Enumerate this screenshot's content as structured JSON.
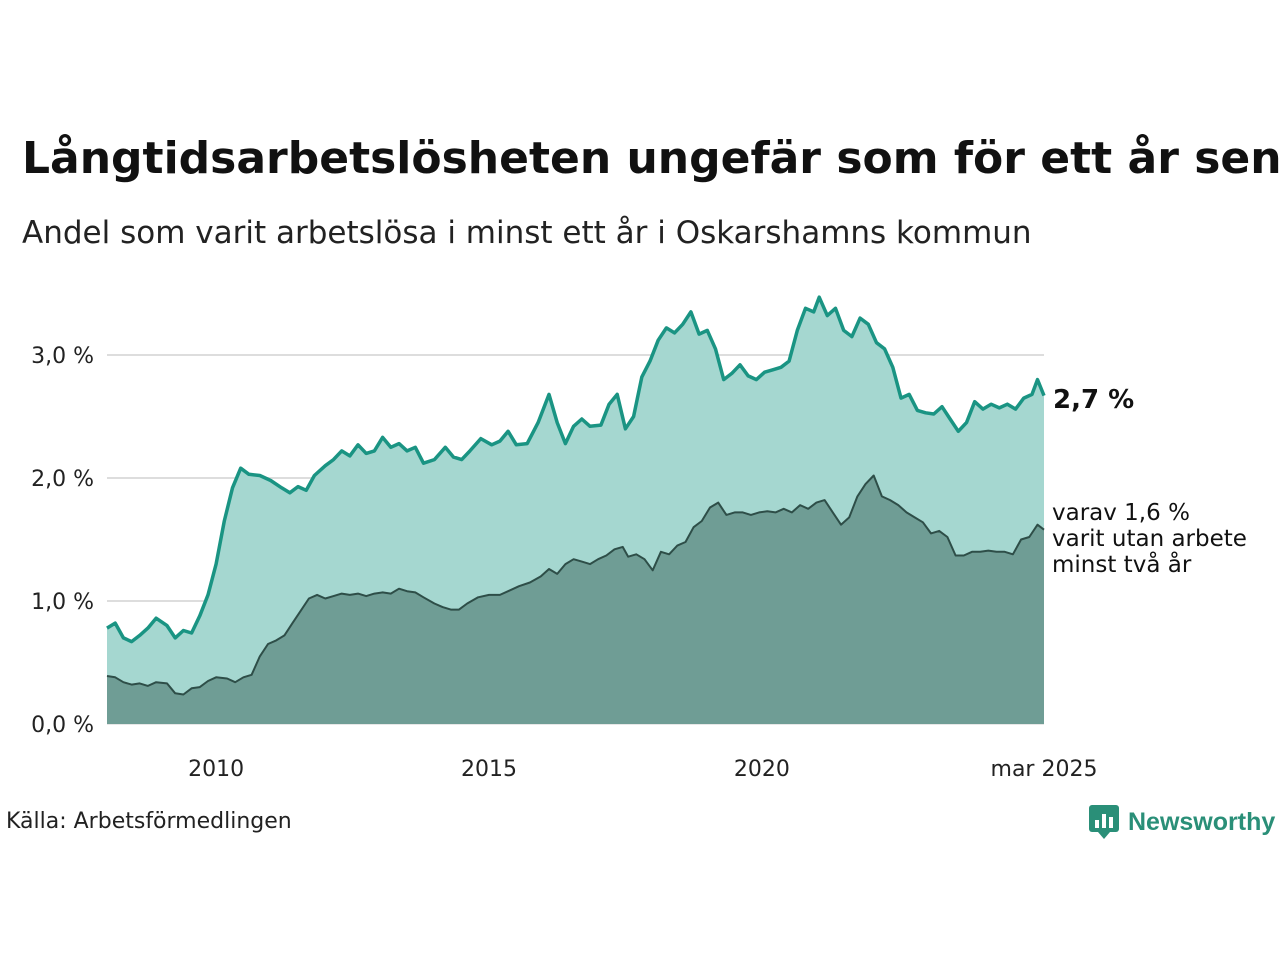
{
  "title": "Långtidsarbetslösheten ungefär som för ett år sen",
  "subtitle": "Andel som varit arbetslösa i minst ett år i Oskarshamns kommun",
  "source": "Källa: Arbetsförmedlingen",
  "brand": "Newsworthy",
  "colors": {
    "area_total": "#a5d7d0",
    "line_total": "#1a9483",
    "area_long": "#6f9d95",
    "line_long": "#2e4e48",
    "grid": "#dddddd",
    "brand": "#2a8f78"
  },
  "annotations": {
    "total_label": "2,7 %",
    "long_label_lines": [
      "varav 1,6 %",
      "varit utan arbete",
      "minst två år"
    ]
  },
  "chart_data": {
    "type": "area",
    "x_start": "2008-01",
    "x_end": "2025-03",
    "xticks": [
      {
        "label": "2010",
        "x": 2010.0
      },
      {
        "label": "2015",
        "x": 2015.0
      },
      {
        "label": "2020",
        "x": 2020.0
      },
      {
        "label": "mar 2025",
        "x": 2025.17
      }
    ],
    "yticks": [
      {
        "label": "0,0 %",
        "y": 0.0
      },
      {
        "label": "1,0 %",
        "y": 1.0
      },
      {
        "label": "2,0 %",
        "y": 2.0
      },
      {
        "label": "3,0 %",
        "y": 3.0
      }
    ],
    "ylim": [
      0,
      3.5
    ],
    "grid": true,
    "series": [
      {
        "name": "minst ett år",
        "points": [
          [
            2008.0,
            0.78
          ],
          [
            2008.15,
            0.82
          ],
          [
            2008.3,
            0.7
          ],
          [
            2008.45,
            0.67
          ],
          [
            2008.6,
            0.72
          ],
          [
            2008.75,
            0.78
          ],
          [
            2008.9,
            0.86
          ],
          [
            2009.1,
            0.8
          ],
          [
            2009.25,
            0.7
          ],
          [
            2009.4,
            0.76
          ],
          [
            2009.55,
            0.74
          ],
          [
            2009.7,
            0.88
          ],
          [
            2009.85,
            1.05
          ],
          [
            2010.0,
            1.3
          ],
          [
            2010.15,
            1.65
          ],
          [
            2010.3,
            1.92
          ],
          [
            2010.45,
            2.08
          ],
          [
            2010.6,
            2.03
          ],
          [
            2010.8,
            2.02
          ],
          [
            2011.0,
            1.98
          ],
          [
            2011.2,
            1.92
          ],
          [
            2011.35,
            1.88
          ],
          [
            2011.5,
            1.93
          ],
          [
            2011.65,
            1.9
          ],
          [
            2011.8,
            2.02
          ],
          [
            2012.0,
            2.1
          ],
          [
            2012.15,
            2.15
          ],
          [
            2012.3,
            2.22
          ],
          [
            2012.45,
            2.18
          ],
          [
            2012.6,
            2.27
          ],
          [
            2012.75,
            2.2
          ],
          [
            2012.9,
            2.22
          ],
          [
            2013.05,
            2.33
          ],
          [
            2013.2,
            2.25
          ],
          [
            2013.35,
            2.28
          ],
          [
            2013.5,
            2.22
          ],
          [
            2013.65,
            2.25
          ],
          [
            2013.8,
            2.12
          ],
          [
            2014.0,
            2.15
          ],
          [
            2014.2,
            2.25
          ],
          [
            2014.35,
            2.17
          ],
          [
            2014.5,
            2.15
          ],
          [
            2014.65,
            2.22
          ],
          [
            2014.85,
            2.32
          ],
          [
            2015.05,
            2.27
          ],
          [
            2015.2,
            2.3
          ],
          [
            2015.35,
            2.38
          ],
          [
            2015.5,
            2.27
          ],
          [
            2015.7,
            2.28
          ],
          [
            2015.9,
            2.45
          ],
          [
            2016.1,
            2.68
          ],
          [
            2016.25,
            2.45
          ],
          [
            2016.4,
            2.28
          ],
          [
            2016.55,
            2.42
          ],
          [
            2016.7,
            2.48
          ],
          [
            2016.85,
            2.42
          ],
          [
            2017.05,
            2.43
          ],
          [
            2017.2,
            2.6
          ],
          [
            2017.35,
            2.68
          ],
          [
            2017.5,
            2.4
          ],
          [
            2017.65,
            2.5
          ],
          [
            2017.8,
            2.82
          ],
          [
            2017.95,
            2.95
          ],
          [
            2018.1,
            3.12
          ],
          [
            2018.25,
            3.22
          ],
          [
            2018.4,
            3.18
          ],
          [
            2018.55,
            3.25
          ],
          [
            2018.7,
            3.35
          ],
          [
            2018.85,
            3.17
          ],
          [
            2019.0,
            3.2
          ],
          [
            2019.15,
            3.05
          ],
          [
            2019.3,
            2.8
          ],
          [
            2019.45,
            2.85
          ],
          [
            2019.6,
            2.92
          ],
          [
            2019.75,
            2.83
          ],
          [
            2019.9,
            2.8
          ],
          [
            2020.05,
            2.86
          ],
          [
            2020.2,
            2.88
          ],
          [
            2020.35,
            2.9
          ],
          [
            2020.5,
            2.95
          ],
          [
            2020.65,
            3.2
          ],
          [
            2020.8,
            3.38
          ],
          [
            2020.95,
            3.35
          ],
          [
            2021.05,
            3.47
          ],
          [
            2021.2,
            3.32
          ],
          [
            2021.35,
            3.38
          ],
          [
            2021.5,
            3.2
          ],
          [
            2021.65,
            3.15
          ],
          [
            2021.8,
            3.3
          ],
          [
            2021.95,
            3.25
          ],
          [
            2022.1,
            3.1
          ],
          [
            2022.25,
            3.05
          ],
          [
            2022.4,
            2.9
          ],
          [
            2022.55,
            2.65
          ],
          [
            2022.7,
            2.68
          ],
          [
            2022.85,
            2.55
          ],
          [
            2023.0,
            2.53
          ],
          [
            2023.15,
            2.52
          ],
          [
            2023.3,
            2.58
          ],
          [
            2023.45,
            2.48
          ],
          [
            2023.6,
            2.38
          ],
          [
            2023.75,
            2.45
          ],
          [
            2023.9,
            2.62
          ],
          [
            2024.05,
            2.56
          ],
          [
            2024.2,
            2.6
          ],
          [
            2024.35,
            2.57
          ],
          [
            2024.5,
            2.6
          ],
          [
            2024.65,
            2.56
          ],
          [
            2024.8,
            2.65
          ],
          [
            2024.95,
            2.68
          ],
          [
            2025.05,
            2.8
          ],
          [
            2025.17,
            2.67
          ]
        ]
      },
      {
        "name": "minst två år",
        "points": [
          [
            2008.0,
            0.39
          ],
          [
            2008.15,
            0.38
          ],
          [
            2008.3,
            0.34
          ],
          [
            2008.45,
            0.32
          ],
          [
            2008.6,
            0.33
          ],
          [
            2008.75,
            0.31
          ],
          [
            2008.9,
            0.34
          ],
          [
            2009.1,
            0.33
          ],
          [
            2009.25,
            0.25
          ],
          [
            2009.4,
            0.24
          ],
          [
            2009.55,
            0.29
          ],
          [
            2009.7,
            0.3
          ],
          [
            2009.85,
            0.35
          ],
          [
            2010.0,
            0.38
          ],
          [
            2010.2,
            0.37
          ],
          [
            2010.35,
            0.34
          ],
          [
            2010.5,
            0.38
          ],
          [
            2010.65,
            0.4
          ],
          [
            2010.8,
            0.55
          ],
          [
            2010.95,
            0.65
          ],
          [
            2011.1,
            0.68
          ],
          [
            2011.25,
            0.72
          ],
          [
            2011.4,
            0.82
          ],
          [
            2011.55,
            0.92
          ],
          [
            2011.7,
            1.02
          ],
          [
            2011.85,
            1.05
          ],
          [
            2012.0,
            1.02
          ],
          [
            2012.15,
            1.04
          ],
          [
            2012.3,
            1.06
          ],
          [
            2012.45,
            1.05
          ],
          [
            2012.6,
            1.06
          ],
          [
            2012.75,
            1.04
          ],
          [
            2012.9,
            1.06
          ],
          [
            2013.05,
            1.07
          ],
          [
            2013.2,
            1.06
          ],
          [
            2013.35,
            1.1
          ],
          [
            2013.5,
            1.08
          ],
          [
            2013.65,
            1.07
          ],
          [
            2013.8,
            1.03
          ],
          [
            2014.0,
            0.98
          ],
          [
            2014.15,
            0.95
          ],
          [
            2014.3,
            0.93
          ],
          [
            2014.45,
            0.93
          ],
          [
            2014.6,
            0.98
          ],
          [
            2014.8,
            1.03
          ],
          [
            2015.0,
            1.05
          ],
          [
            2015.2,
            1.05
          ],
          [
            2015.35,
            1.08
          ],
          [
            2015.55,
            1.12
          ],
          [
            2015.75,
            1.15
          ],
          [
            2015.95,
            1.2
          ],
          [
            2016.1,
            1.26
          ],
          [
            2016.25,
            1.22
          ],
          [
            2016.4,
            1.3
          ],
          [
            2016.55,
            1.34
          ],
          [
            2016.7,
            1.32
          ],
          [
            2016.85,
            1.3
          ],
          [
            2017.0,
            1.34
          ],
          [
            2017.15,
            1.37
          ],
          [
            2017.3,
            1.42
          ],
          [
            2017.45,
            1.44
          ],
          [
            2017.55,
            1.36
          ],
          [
            2017.7,
            1.38
          ],
          [
            2017.85,
            1.34
          ],
          [
            2018.0,
            1.25
          ],
          [
            2018.15,
            1.4
          ],
          [
            2018.3,
            1.38
          ],
          [
            2018.45,
            1.45
          ],
          [
            2018.6,
            1.48
          ],
          [
            2018.75,
            1.6
          ],
          [
            2018.9,
            1.65
          ],
          [
            2019.05,
            1.76
          ],
          [
            2019.2,
            1.8
          ],
          [
            2019.35,
            1.7
          ],
          [
            2019.5,
            1.72
          ],
          [
            2019.65,
            1.72
          ],
          [
            2019.8,
            1.7
          ],
          [
            2019.95,
            1.72
          ],
          [
            2020.1,
            1.73
          ],
          [
            2020.25,
            1.72
          ],
          [
            2020.4,
            1.75
          ],
          [
            2020.55,
            1.72
          ],
          [
            2020.7,
            1.78
          ],
          [
            2020.85,
            1.75
          ],
          [
            2021.0,
            1.8
          ],
          [
            2021.15,
            1.82
          ],
          [
            2021.3,
            1.72
          ],
          [
            2021.45,
            1.62
          ],
          [
            2021.6,
            1.68
          ],
          [
            2021.75,
            1.85
          ],
          [
            2021.9,
            1.95
          ],
          [
            2022.05,
            2.02
          ],
          [
            2022.2,
            1.85
          ],
          [
            2022.35,
            1.82
          ],
          [
            2022.5,
            1.78
          ],
          [
            2022.65,
            1.72
          ],
          [
            2022.8,
            1.68
          ],
          [
            2022.95,
            1.64
          ],
          [
            2023.1,
            1.55
          ],
          [
            2023.25,
            1.57
          ],
          [
            2023.4,
            1.52
          ],
          [
            2023.55,
            1.37
          ],
          [
            2023.7,
            1.37
          ],
          [
            2023.85,
            1.4
          ],
          [
            2024.0,
            1.4
          ],
          [
            2024.15,
            1.41
          ],
          [
            2024.3,
            1.4
          ],
          [
            2024.45,
            1.4
          ],
          [
            2024.6,
            1.38
          ],
          [
            2024.75,
            1.5
          ],
          [
            2024.9,
            1.52
          ],
          [
            2025.05,
            1.62
          ],
          [
            2025.17,
            1.58
          ]
        ]
      }
    ]
  }
}
